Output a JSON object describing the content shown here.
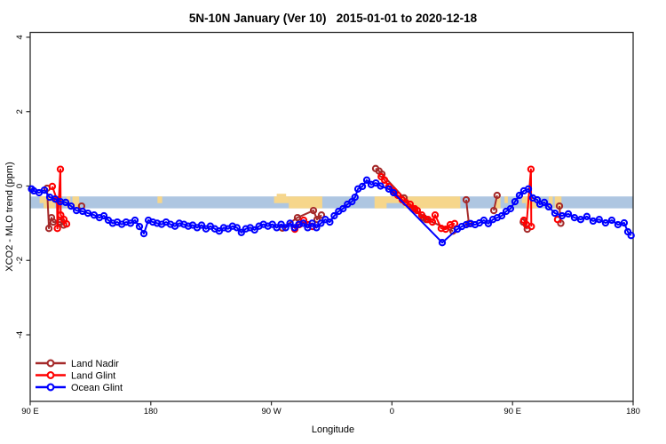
{
  "title": "5N-10N January (Ver 10)   2015-01-01 to 2020-12-18",
  "chart_data": {
    "type": "scatter",
    "title": "5N-10N January (Ver 10)   2015-01-01 to 2020-12-18",
    "xlabel": "Longitude",
    "ylabel": "XCO2 - MLO trend (ppm)",
    "xlim": [
      90,
      540
    ],
    "ylim": [
      -5.79,
      4.13
    ],
    "grid": false,
    "x_ticks": [
      {
        "value": 90,
        "label": "90 E"
      },
      {
        "value": 180,
        "label": "180"
      },
      {
        "value": 270,
        "label": "90 W"
      },
      {
        "value": 360,
        "label": "0"
      },
      {
        "value": 450,
        "label": "90 E"
      },
      {
        "value": 540,
        "label": "180"
      }
    ],
    "y_ticks": [
      {
        "value": 4,
        "label": "4"
      },
      {
        "value": 2,
        "label": "2"
      },
      {
        "value": 0,
        "label": "0"
      },
      {
        "value": -2,
        "label": "-2"
      },
      {
        "value": -4,
        "label": "-4"
      }
    ],
    "map_band": {
      "description": "world-map strip for latitude 5N-10N drawn behind data",
      "top_value": -0.28,
      "bottom_value": -0.6,
      "ocean_color": "#aec6e1",
      "land_color": "#f6d68b",
      "land_patches": [
        {
          "from": 97,
          "to": 100,
          "part": "top"
        },
        {
          "from": 100,
          "to": 108.5,
          "part": "full"
        },
        {
          "from": 117,
          "to": 120,
          "part": "full"
        },
        {
          "from": 121.5,
          "to": 126.5,
          "part": "full"
        },
        {
          "from": 185,
          "to": 188.5,
          "part": "top"
        },
        {
          "from": 272,
          "to": 283,
          "part": "top"
        },
        {
          "from": 274,
          "to": 281,
          "part": "bump"
        },
        {
          "from": 283,
          "to": 308,
          "part": "full"
        },
        {
          "from": 347,
          "to": 411,
          "part": "top"
        },
        {
          "from": 347,
          "to": 356,
          "part": "bottom"
        },
        {
          "from": 369,
          "to": 411,
          "part": "bottom"
        },
        {
          "from": 437,
          "to": 441,
          "part": "full"
        },
        {
          "from": 444,
          "to": 446.5,
          "part": "top"
        },
        {
          "from": 457,
          "to": 460,
          "part": "top"
        },
        {
          "from": 460,
          "to": 468.5,
          "part": "full"
        },
        {
          "from": 477,
          "to": 480,
          "part": "full"
        },
        {
          "from": 481.5,
          "to": 486.5,
          "part": "full"
        }
      ]
    },
    "series": [
      {
        "name": "Land Nadir",
        "color": "#a52a2a",
        "marker": "open-circle",
        "segments": [
          [
            [
              102.6,
              -0.06
            ],
            [
              104.0,
              -1.14
            ],
            [
              105.9,
              -0.85
            ],
            [
              107.2,
              -0.97
            ],
            [
              112.5,
              -0.97
            ],
            [
              115.0,
              -1.05
            ]
          ],
          [
            [
              128.4,
              -0.54
            ]
          ],
          [
            [
              278.2,
              -1.13
            ],
            [
              289.5,
              -0.85
            ],
            [
              301.4,
              -0.66
            ],
            [
              304.1,
              -0.9
            ],
            [
              307.4,
              -0.78
            ]
          ],
          [
            [
              347.8,
              0.47
            ],
            [
              350.4,
              0.4
            ],
            [
              352.5,
              0.32
            ],
            [
              369.0,
              -0.32
            ],
            [
              375.6,
              -0.61
            ],
            [
              383.6,
              -0.85
            ],
            [
              385.6,
              -0.9
            ],
            [
              405.5,
              -1.21
            ]
          ],
          [
            [
              415.4,
              -0.37
            ],
            [
              417.4,
              -1.01
            ]
          ],
          [
            [
              436.0,
              -0.66
            ],
            [
              438.5,
              -0.25
            ]
          ],
          [
            [
              458.0,
              -0.97
            ],
            [
              461.0,
              -1.16
            ]
          ],
          [
            [
              485.0,
              -0.54
            ],
            [
              486.0,
              -1.0
            ]
          ]
        ]
      },
      {
        "name": "Land Glint",
        "color": "#ff0000",
        "marker": "open-circle",
        "segments": [
          [
            [
              106.5,
              -0.01
            ],
            [
              110.0,
              -0.37
            ],
            [
              110.3,
              -1.14
            ],
            [
              112.5,
              0.45
            ],
            [
              112.8,
              -0.78
            ],
            [
              115.2,
              -0.9
            ],
            [
              117.2,
              -1.02
            ]
          ],
          [
            [
              287.5,
              -1.16
            ],
            [
              290.8,
              -1.04
            ],
            [
              294.1,
              -0.92
            ],
            [
              297.4,
              -1.04
            ],
            [
              300.7,
              -1.09
            ]
          ],
          [
            [
              352.0,
              0.25
            ],
            [
              354.5,
              0.16
            ],
            [
              357.7,
              -0.01
            ],
            [
              361.1,
              -0.13
            ],
            [
              364.4,
              -0.25
            ],
            [
              367.7,
              -0.37
            ],
            [
              370.3,
              -0.44
            ],
            [
              373.6,
              -0.49
            ],
            [
              377.0,
              -0.61
            ],
            [
              378.9,
              -0.66
            ],
            [
              382.3,
              -0.78
            ],
            [
              386.9,
              -0.9
            ],
            [
              390.2,
              -0.97
            ],
            [
              392.2,
              -0.78
            ],
            [
              396.8,
              -1.14
            ],
            [
              400.1,
              -1.16
            ],
            [
              403.5,
              -1.04
            ],
            [
              406.8,
              -1.01
            ]
          ],
          [
            [
              458.4,
              -0.92
            ],
            [
              460.4,
              -1.04
            ],
            [
              463.7,
              0.45
            ],
            [
              464.0,
              -1.09
            ]
          ],
          [
            [
              483.6,
              -0.9
            ]
          ]
        ]
      },
      {
        "name": "Ocean Glint",
        "color": "#0000ff",
        "marker": "open-circle",
        "segments": [
          [
            [
              91.0,
              -0.08
            ],
            [
              92.7,
              -0.13
            ],
            [
              96.6,
              -0.18
            ],
            [
              100.6,
              -0.11
            ],
            [
              104.6,
              -0.3
            ],
            [
              108.6,
              -0.35
            ],
            [
              112.5,
              -0.42
            ],
            [
              116.5,
              -0.44
            ],
            [
              120.5,
              -0.54
            ],
            [
              124.5,
              -0.66
            ],
            [
              129.1,
              -0.68
            ],
            [
              133.1,
              -0.73
            ],
            [
              137.7,
              -0.78
            ],
            [
              141.7,
              -0.85
            ],
            [
              145.0,
              -0.8
            ],
            [
              148.3,
              -0.92
            ],
            [
              151.6,
              -1.0
            ],
            [
              155.0,
              -0.97
            ],
            [
              158.3,
              -1.03
            ],
            [
              161.6,
              -0.97
            ],
            [
              164.9,
              -1.0
            ],
            [
              168.2,
              -0.92
            ],
            [
              171.5,
              -1.09
            ],
            [
              174.8,
              -1.28
            ],
            [
              178.2,
              -0.92
            ],
            [
              181.5,
              -0.97
            ],
            [
              184.8,
              -1.0
            ],
            [
              188.1,
              -1.03
            ],
            [
              191.4,
              -0.97
            ],
            [
              194.7,
              -1.03
            ],
            [
              198.0,
              -1.08
            ],
            [
              201.3,
              -1.0
            ],
            [
              204.7,
              -1.03
            ],
            [
              208.0,
              -1.08
            ],
            [
              211.3,
              -1.05
            ],
            [
              214.6,
              -1.12
            ],
            [
              217.9,
              -1.05
            ],
            [
              221.2,
              -1.15
            ],
            [
              224.5,
              -1.08
            ],
            [
              227.8,
              -1.15
            ],
            [
              231.1,
              -1.21
            ],
            [
              234.4,
              -1.12
            ],
            [
              237.7,
              -1.15
            ],
            [
              241.0,
              -1.08
            ],
            [
              244.3,
              -1.12
            ],
            [
              247.6,
              -1.25
            ],
            [
              250.9,
              -1.15
            ],
            [
              254.2,
              -1.12
            ],
            [
              257.5,
              -1.18
            ],
            [
              260.8,
              -1.08
            ],
            [
              264.1,
              -1.03
            ],
            [
              267.4,
              -1.08
            ],
            [
              270.7,
              -1.03
            ],
            [
              274.0,
              -1.12
            ],
            [
              277.3,
              -1.03
            ],
            [
              280.6,
              -1.12
            ],
            [
              283.9,
              -1.0
            ],
            [
              287.2,
              -1.12
            ],
            [
              290.5,
              -1.03
            ],
            [
              293.8,
              -1.0
            ],
            [
              297.1,
              -1.12
            ],
            [
              300.4,
              -1.0
            ],
            [
              303.7,
              -1.12
            ],
            [
              307.0,
              -1.0
            ],
            [
              310.3,
              -0.9
            ],
            [
              313.6,
              -0.97
            ],
            [
              316.9,
              -0.8
            ],
            [
              320.2,
              -0.68
            ],
            [
              323.5,
              -0.61
            ],
            [
              326.8,
              -0.49
            ],
            [
              330.1,
              -0.42
            ],
            [
              332.4,
              -0.3
            ],
            [
              334.6,
              -0.08
            ],
            [
              337.9,
              -0.01
            ],
            [
              341.2,
              0.16
            ],
            [
              344.5,
              0.04
            ],
            [
              348.0,
              0.08
            ],
            [
              351.5,
              0.0
            ],
            [
              357.7,
              -0.08
            ],
            [
              361.1,
              -0.18
            ],
            [
              397.5,
              -1.52
            ],
            [
              408.8,
              -1.16
            ],
            [
              412.1,
              -1.09
            ],
            [
              415.4,
              -1.04
            ],
            [
              418.7,
              -1.01
            ],
            [
              422.0,
              -1.04
            ],
            [
              425.3,
              -0.99
            ],
            [
              428.6,
              -0.92
            ],
            [
              431.9,
              -1.01
            ],
            [
              435.3,
              -0.9
            ],
            [
              438.6,
              -0.85
            ],
            [
              441.9,
              -0.8
            ],
            [
              445.2,
              -0.68
            ],
            [
              448.5,
              -0.61
            ],
            [
              451.8,
              -0.42
            ],
            [
              455.1,
              -0.25
            ],
            [
              458.4,
              -0.13
            ],
            [
              461.8,
              -0.08
            ],
            [
              465.1,
              -0.32
            ],
            [
              468.4,
              -0.37
            ],
            [
              470.4,
              -0.49
            ],
            [
              473.7,
              -0.44
            ],
            [
              477.0,
              -0.56
            ],
            [
              481.6,
              -0.73
            ],
            [
              486.9,
              -0.8
            ],
            [
              491.6,
              -0.75
            ],
            [
              496.2,
              -0.85
            ],
            [
              500.8,
              -0.9
            ],
            [
              505.5,
              -0.82
            ],
            [
              510.1,
              -0.94
            ],
            [
              514.7,
              -0.9
            ],
            [
              519.4,
              -0.99
            ],
            [
              524.0,
              -0.92
            ],
            [
              528.7,
              -1.04
            ],
            [
              533.3,
              -0.99
            ],
            [
              536.0,
              -1.23
            ],
            [
              538.5,
              -1.33
            ]
          ]
        ]
      }
    ],
    "legend": {
      "position": "bottom-left",
      "entries": [
        {
          "label": "Land Nadir",
          "color": "#a52a2a"
        },
        {
          "label": "Land Glint",
          "color": "#ff0000"
        },
        {
          "label": "Ocean Glint",
          "color": "#0000ff"
        }
      ]
    },
    "axis_color": "#2b2b2b"
  }
}
